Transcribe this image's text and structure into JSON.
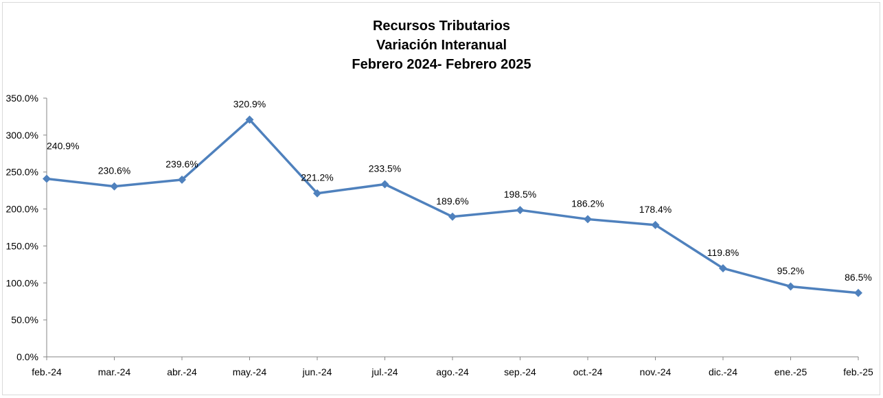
{
  "chart_data": {
    "type": "line",
    "title": "Recursos Tributarios\nVariación Interanual\nFebrero 2024- Febrero 2025",
    "title_lines": [
      "Recursos Tributarios",
      "Variación Interanual",
      "Febrero 2024- Febrero 2025"
    ],
    "xlabel": "",
    "ylabel": "",
    "categories": [
      "feb.-24",
      "mar.-24",
      "abr.-24",
      "may.-24",
      "jun.-24",
      "jul.-24",
      "ago.-24",
      "sep.-24",
      "oct.-24",
      "nov.-24",
      "dic.-24",
      "ene.-25",
      "feb.-25"
    ],
    "series": [
      {
        "name": "Variación Interanual",
        "values": [
          240.9,
          230.6,
          239.6,
          320.9,
          221.2,
          233.5,
          189.6,
          198.5,
          186.2,
          178.4,
          119.8,
          95.2,
          86.5
        ],
        "labels": [
          "240.9%",
          "230.6%",
          "239.6%",
          "320.9%",
          "221.2%",
          "233.5%",
          "189.6%",
          "198.5%",
          "186.2%",
          "178.4%",
          "119.8%",
          "95.2%",
          "86.5%"
        ],
        "color": "#4f81bd",
        "marker": "diamond"
      }
    ],
    "ylim": [
      0,
      350
    ],
    "yticks": [
      0,
      50,
      100,
      150,
      200,
      250,
      300,
      350
    ],
    "ytick_labels": [
      "0.0%",
      "50.0%",
      "100.0%",
      "150.0%",
      "200.0%",
      "250.0%",
      "300.0%",
      "350.0%"
    ],
    "grid": false,
    "legend": null
  }
}
